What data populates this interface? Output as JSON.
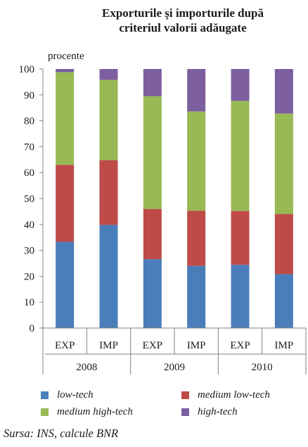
{
  "chart_data": {
    "type": "bar",
    "stacked": true,
    "title": [
      "Exporturile și importurile după",
      "criteriul valorii adăugate"
    ],
    "ylabel": "procente",
    "ylim": [
      0,
      100
    ],
    "yticks": [
      "0",
      "10",
      "20",
      "30",
      "40",
      "50",
      "60",
      "70",
      "80",
      "90",
      "100"
    ],
    "categories": [
      "EXP",
      "IMP",
      "EXP",
      "IMP",
      "EXP",
      "IMP"
    ],
    "groups": [
      "2008",
      "2009",
      "2010"
    ],
    "series": [
      {
        "name": "low-tech",
        "color": "#4a7ebb",
        "values": [
          33.3,
          39.8,
          26.6,
          24.0,
          24.4,
          20.8
        ]
      },
      {
        "name": "medium low-tech",
        "color": "#be4b48",
        "values": [
          29.7,
          25.0,
          19.4,
          21.3,
          20.8,
          23.2
        ]
      },
      {
        "name": "medium high-tech",
        "color": "#98b954",
        "values": [
          35.8,
          31.0,
          43.5,
          38.3,
          42.5,
          38.8
        ]
      },
      {
        "name": "high-tech",
        "color": "#7d5fa0",
        "values": [
          1.2,
          4.2,
          10.5,
          16.4,
          12.3,
          17.2
        ]
      }
    ],
    "grid": false,
    "legend_position": "bottom"
  },
  "source": "Sursa: INS, calcule BNR"
}
